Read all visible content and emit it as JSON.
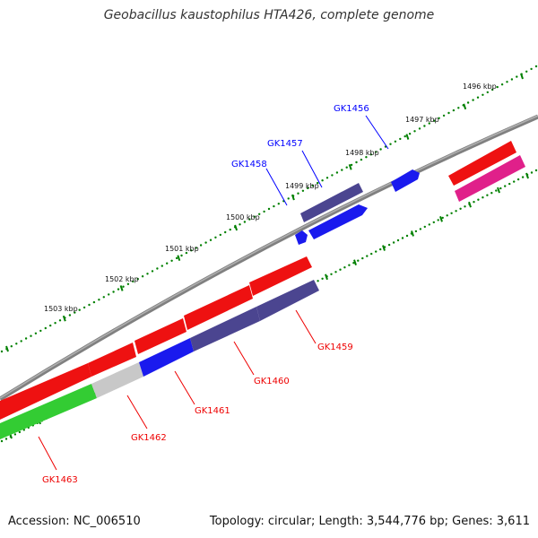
{
  "title": "Geobacillus kaustophilus HTA426, complete genome",
  "footer": {
    "accession": "Accession: NC_006510",
    "summary": "Topology: circular; Length: 3,544,776 bp; Genes: 3,611"
  },
  "ruler": {
    "labels": [
      "1496 kbp",
      "1497 kbp",
      "1498 kbp",
      "1499 kbp",
      "1500 kbp",
      "1501 kbp",
      "1502 kbp",
      "1503 kbp"
    ]
  },
  "genes": [
    {
      "label": "GK1456",
      "color": "#0000ff"
    },
    {
      "label": "GK1457",
      "color": "#0000ff"
    },
    {
      "label": "GK1458",
      "color": "#0000ff"
    },
    {
      "label": "GK1459",
      "color": "#ee0000"
    },
    {
      "label": "GK1460",
      "color": "#ee0000"
    },
    {
      "label": "GK1461",
      "color": "#ee0000"
    },
    {
      "label": "GK1462",
      "color": "#ee0000"
    },
    {
      "label": "GK1463",
      "color": "#ee0000"
    }
  ],
  "colors": {
    "backbone": "#808080",
    "ticks": "#008000",
    "red_feature": "#ee1111",
    "purple_feature": "#4b4590",
    "blue_feature": "#1a1aee",
    "grey_feature": "#c8c8c8",
    "green_feature": "#33cc33",
    "pink_feature": "#e0208a"
  }
}
